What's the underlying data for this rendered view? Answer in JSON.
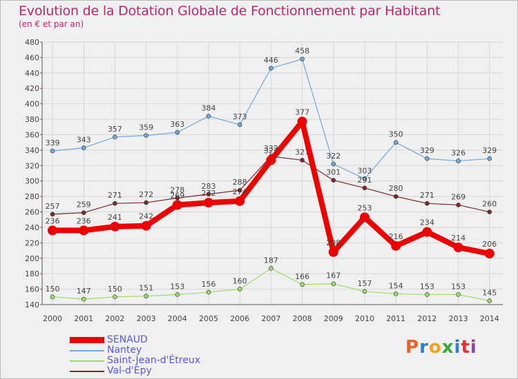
{
  "header": {
    "title": "Evolution de la Dotation Globale de Fonctionnement par Habitant",
    "subtitle": "(en € et par an)"
  },
  "logo": {
    "text": "Proxiti",
    "letter_colors": [
      "#e8632a",
      "#2f7fcf",
      "#f2a31d",
      "#3aa83a",
      "#2f7fcf",
      "#e53131",
      "#8e44ad"
    ]
  },
  "chart_data": {
    "type": "line",
    "title": "Evolution de la Dotation Globale de Fonctionnement par Habitant",
    "subtitle": "(en € et par an)",
    "x": [
      "2000",
      "2001",
      "2002",
      "2003",
      "2004",
      "2005",
      "2006",
      "2007",
      "2008",
      "2009",
      "2010",
      "2011",
      "2012",
      "2013",
      "2014"
    ],
    "ylim": [
      140,
      480
    ],
    "yticks": [
      140,
      160,
      180,
      200,
      220,
      240,
      260,
      280,
      300,
      320,
      340,
      360,
      380,
      400,
      420,
      440,
      460,
      480
    ],
    "grid": true,
    "legend_position": "bottom-left",
    "series": [
      {
        "name": "SENAUD",
        "color": "#ee0000",
        "values": [
          236,
          236,
          241,
          242,
          269,
          272,
          274,
          327,
          377,
          208,
          253,
          216,
          234,
          214,
          206
        ]
      },
      {
        "name": "Nantey",
        "color": "#6fa8dc",
        "values": [
          339,
          343,
          357,
          359,
          363,
          384,
          373,
          446,
          458,
          322,
          303,
          350,
          329,
          326,
          329
        ]
      },
      {
        "name": "Saint-Jean-d'Étreux",
        "color": "#99dd66",
        "values": [
          150,
          147,
          150,
          151,
          153,
          156,
          160,
          187,
          166,
          167,
          157,
          154,
          153,
          153,
          145
        ]
      },
      {
        "name": "Val-d'Epy",
        "color": "#7a2a2a",
        "values": [
          257,
          259,
          271,
          272,
          278,
          283,
          288,
          332,
          327,
          301,
          291,
          280,
          271,
          269,
          260
        ]
      }
    ]
  }
}
